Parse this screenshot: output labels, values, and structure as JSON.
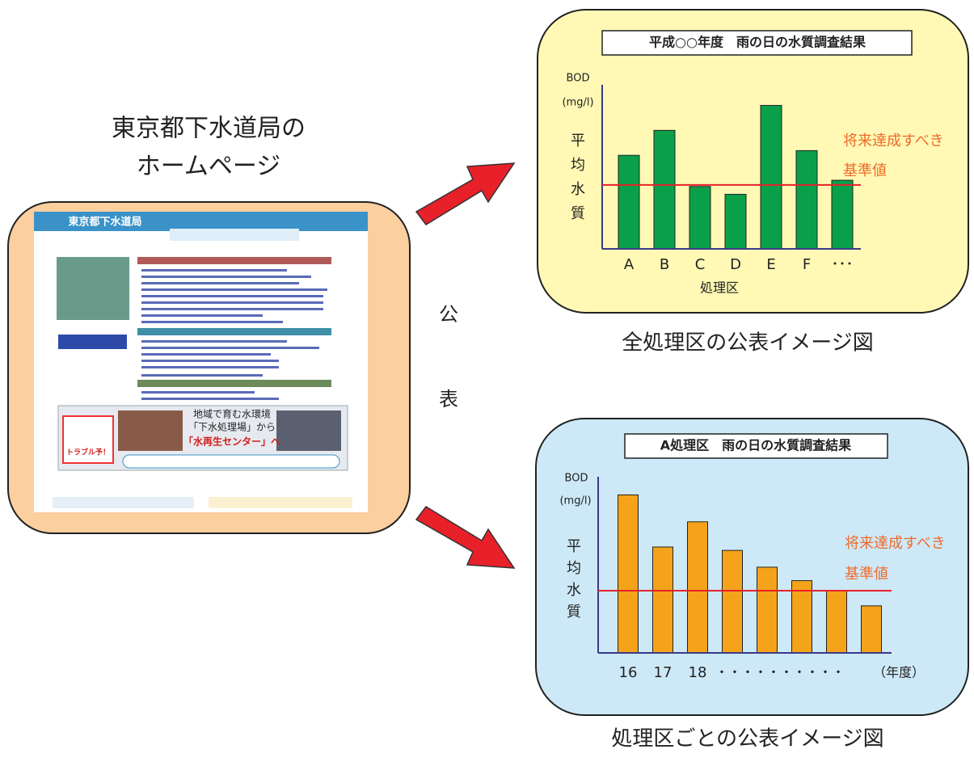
{
  "left_label": [
    "東京都下水道局の",
    "ホームページ"
  ],
  "screenshot": {
    "site_title": "東京都下水道局",
    "banner_line1": "地域で育む水環境",
    "banner_line2": "「下水処理場」から",
    "banner_line3": "「水再生センター」へ",
    "badge": "トラブル予！"
  },
  "publish_label": [
    "公",
    "表"
  ],
  "chart_data": [
    {
      "type": "bar",
      "title": "平成○○年度　雨の日の水質調査結果",
      "y_label": "BOD",
      "y_unit": "(mg/l)",
      "y_side_label": [
        "平",
        "均",
        "水",
        "質"
      ],
      "x_label": "処理区",
      "categories": [
        "A",
        "B",
        "C",
        "D",
        "E",
        "F",
        "･･･"
      ],
      "values": [
        60,
        76,
        40,
        35,
        92,
        63,
        44
      ],
      "color": "#0aa04a",
      "ylim": [
        0,
        100
      ],
      "reference_line": {
        "value": 41,
        "color": "#e8202a",
        "label": [
          "将来達成すべき",
          "基準値"
        ]
      },
      "caption": "全処理区の公表イメージ図"
    },
    {
      "type": "bar",
      "title": "A処理区　雨の日の水質調査結果",
      "y_label": "BOD",
      "y_unit": "(mg/l)",
      "y_side_label": [
        "平",
        "均",
        "水",
        "質"
      ],
      "x_label": "（年度）",
      "x_ellipsis": "・・・・・・・・・・",
      "categories": [
        "16",
        "17",
        "18",
        null,
        null,
        null,
        null,
        null
      ],
      "values": [
        94,
        63,
        78,
        61,
        51,
        43,
        37,
        28
      ],
      "color": "#f5a31a",
      "ylim": [
        0,
        100
      ],
      "reference_line": {
        "value": 37,
        "color": "#e8202a",
        "label": [
          "将来達成すべき",
          "基準値"
        ]
      },
      "caption": "処理区ごとの公表イメージ図"
    }
  ]
}
